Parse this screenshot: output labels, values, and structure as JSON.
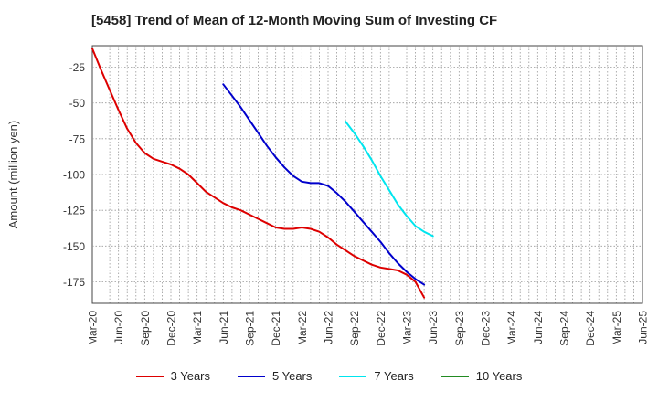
{
  "chart_data": {
    "type": "line",
    "title": "[5458]  Trend of Mean of 12-Month Moving Sum of Investing CF",
    "xlabel": "",
    "ylabel": "Amount (million yen)",
    "ylim": [
      -190,
      -10
    ],
    "yticks": [
      -25,
      -50,
      -75,
      -100,
      -125,
      -150,
      -175
    ],
    "x_ticks": [
      "Mar-20",
      "Jun-20",
      "Sep-20",
      "Dec-20",
      "Mar-21",
      "Jun-21",
      "Sep-21",
      "Dec-21",
      "Mar-22",
      "Jun-22",
      "Sep-22",
      "Dec-22",
      "Mar-23",
      "Jun-23",
      "Sep-23",
      "Dec-23",
      "Mar-24",
      "Jun-24",
      "Sep-24",
      "Dec-24",
      "Mar-25",
      "Jun-25"
    ],
    "grid": true,
    "legend_position": "bottom",
    "series": [
      {
        "name": "3 Years",
        "color": "#dd0000",
        "points": [
          [
            0,
            -12
          ],
          [
            1,
            -27
          ],
          [
            2,
            -41
          ],
          [
            3,
            -55
          ],
          [
            4,
            -68
          ],
          [
            5,
            -78
          ],
          [
            6,
            -85
          ],
          [
            7,
            -89
          ],
          [
            8,
            -91
          ],
          [
            9,
            -93
          ],
          [
            10,
            -96
          ],
          [
            11,
            -100
          ],
          [
            12,
            -106
          ],
          [
            13,
            -112
          ],
          [
            14,
            -116
          ],
          [
            15,
            -120
          ],
          [
            16,
            -123
          ],
          [
            17,
            -125
          ],
          [
            18,
            -128
          ],
          [
            19,
            -131
          ],
          [
            20,
            -134
          ],
          [
            21,
            -137
          ],
          [
            22,
            -138
          ],
          [
            23,
            -138
          ],
          [
            24,
            -137
          ],
          [
            25,
            -138
          ],
          [
            26,
            -140
          ],
          [
            27,
            -144
          ],
          [
            28,
            -149
          ],
          [
            29,
            -153
          ],
          [
            30,
            -157
          ],
          [
            31,
            -160
          ],
          [
            32,
            -163
          ],
          [
            33,
            -165
          ],
          [
            34,
            -166
          ],
          [
            35,
            -167
          ],
          [
            36,
            -170
          ],
          [
            37,
            -175
          ],
          [
            38,
            -186
          ]
        ]
      },
      {
        "name": "5 Years",
        "color": "#0000cc",
        "points": [
          [
            15,
            -37
          ],
          [
            16,
            -45
          ],
          [
            17,
            -53
          ],
          [
            18,
            -62
          ],
          [
            19,
            -71
          ],
          [
            20,
            -80
          ],
          [
            21,
            -88
          ],
          [
            22,
            -95
          ],
          [
            23,
            -101
          ],
          [
            24,
            -105
          ],
          [
            25,
            -106
          ],
          [
            26,
            -106
          ],
          [
            27,
            -108
          ],
          [
            28,
            -113
          ],
          [
            29,
            -119
          ],
          [
            30,
            -126
          ],
          [
            31,
            -133
          ],
          [
            32,
            -140
          ],
          [
            33,
            -147
          ],
          [
            34,
            -155
          ],
          [
            35,
            -162
          ],
          [
            36,
            -168
          ],
          [
            37,
            -173
          ],
          [
            38,
            -177
          ]
        ]
      },
      {
        "name": "7 Years",
        "color": "#00e5ee",
        "points": [
          [
            29,
            -63
          ],
          [
            30,
            -71
          ],
          [
            31,
            -80
          ],
          [
            32,
            -90
          ],
          [
            33,
            -101
          ],
          [
            34,
            -111
          ],
          [
            35,
            -121
          ],
          [
            36,
            -129
          ],
          [
            37,
            -136
          ],
          [
            38,
            -140
          ],
          [
            39,
            -143
          ]
        ]
      },
      {
        "name": "10 Years",
        "color": "#228b22",
        "points": []
      }
    ]
  }
}
